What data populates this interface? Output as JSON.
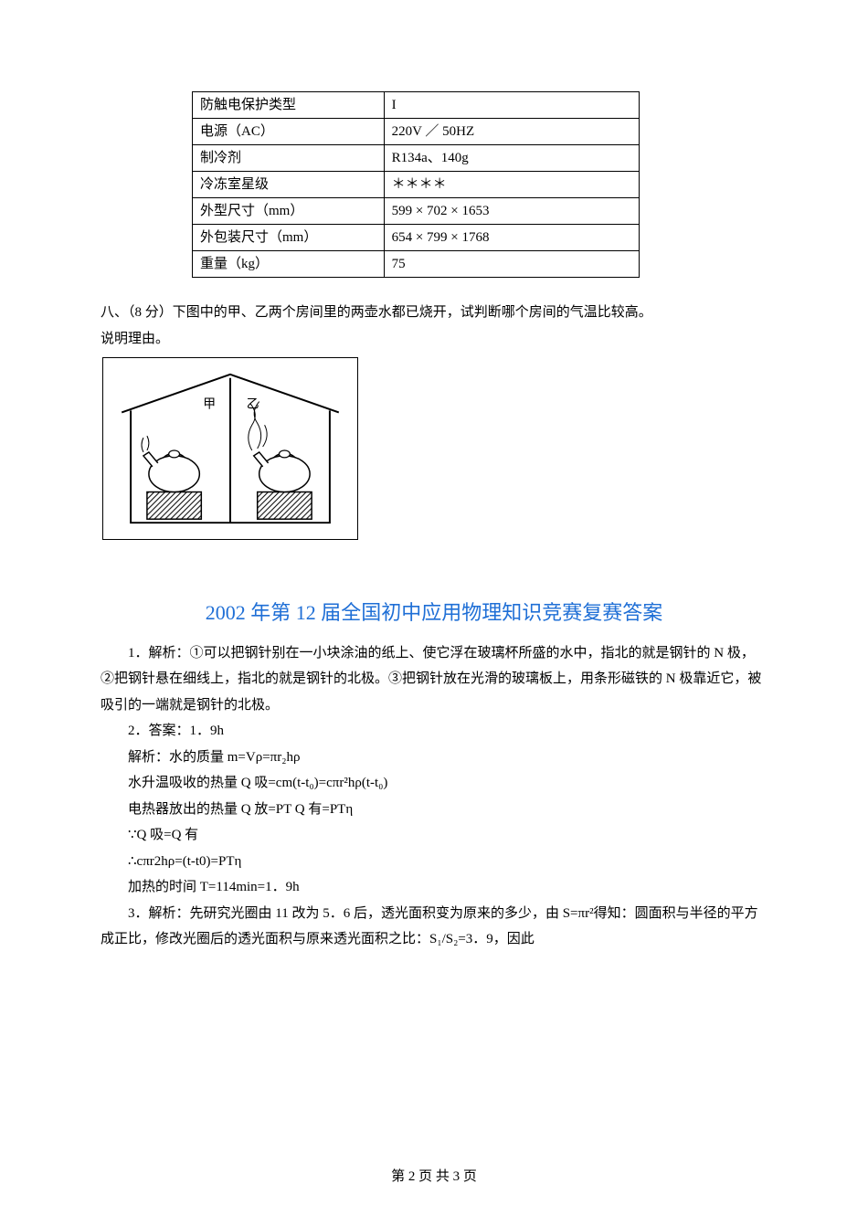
{
  "table": {
    "rows": [
      {
        "label": "防触电保护类型",
        "value": "I"
      },
      {
        "label": "电源（AC）",
        "value": "220V ／ 50HZ"
      },
      {
        "label": "制冷剂",
        "value": "R134a、140g"
      },
      {
        "label": "冷冻室星级",
        "value": "＊＊＊＊"
      },
      {
        "label": "外型尺寸（mm）",
        "value": "599 × 702 × 1653"
      },
      {
        "label": "外包装尺寸（mm）",
        "value": "654 × 799 × 1768"
      },
      {
        "label": "重量（kg）",
        "value": "75"
      }
    ]
  },
  "q8": {
    "line1": "八、（8 分）下图中的甲、乙两个房间里的两壶水都已烧开，试判断哪个房间的气温比较高。",
    "line2": "说明理由。"
  },
  "diagram": {
    "labels": {
      "left": "甲",
      "right": "乙"
    }
  },
  "title": "2002 年第 12 届全国初中应用物理知识竞赛复赛答案",
  "answers": {
    "a1": "1．解析：①可以把钢针别在一小块涂油的纸上、使它浮在玻璃杯所盛的水中，指北的就是钢针的 N 极，②把钢针悬在细线上，指北的就是钢针的北极。③把钢针放在光滑的玻璃板上，用条形磁铁的 N 极靠近它，被吸引的一端就是钢针的北极。",
    "a2_1": "2．答案：1．9h",
    "a2_2": "解析：水的质量  m=Vρ=πr₂hρ",
    "a2_3": "水升温吸收的热量  Q 吸=cm(t-t₀)=cπr²hρ(t-t₀)",
    "a2_4": "电热器放出的热量  Q 放=PT    Q 有=PTη",
    "a2_5": "∵Q 吸=Q 有",
    "a2_6": "∴cπr2hρ=(t-t0)=PTη",
    "a2_7": "加热的时间 T=114min=1．9h",
    "a3": "3．解析：先研究光圈由 11 改为 5．6 后，透光面积变为原来的多少，由 S=πr²得知：圆面积与半径的平方成正比，修改光圈后的透光面积与原来透光面积之比：S₁/S₂=3．9，因此"
  },
  "footer": "第 2 页 共 3 页"
}
